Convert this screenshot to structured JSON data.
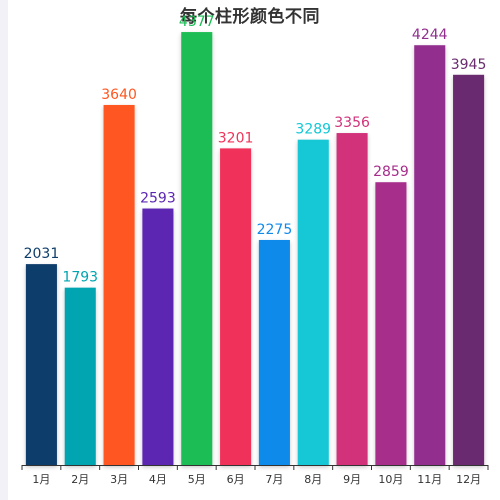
{
  "chart_data": {
    "type": "bar",
    "title": "每个柱形颜色不同",
    "categories": [
      "1月",
      "2月",
      "3月",
      "4月",
      "5月",
      "6月",
      "7月",
      "8月",
      "9月",
      "10月",
      "11月",
      "12月"
    ],
    "values": [
      2031,
      1793,
      3640,
      2593,
      4377,
      3201,
      2275,
      3289,
      3356,
      2859,
      4244,
      3945
    ],
    "colors": [
      "#0e3e6b",
      "#00a5b1",
      "#ff5722",
      "#5b27b2",
      "#1dbd55",
      "#f0335a",
      "#118aea",
      "#12c8d6",
      "#d1327a",
      "#a72d8a",
      "#922e8e",
      "#6a2c6f"
    ],
    "ylim": [
      0,
      4600
    ],
    "xlabel": "",
    "ylabel": "",
    "grid": false,
    "legend": "none",
    "data_labels": true
  }
}
